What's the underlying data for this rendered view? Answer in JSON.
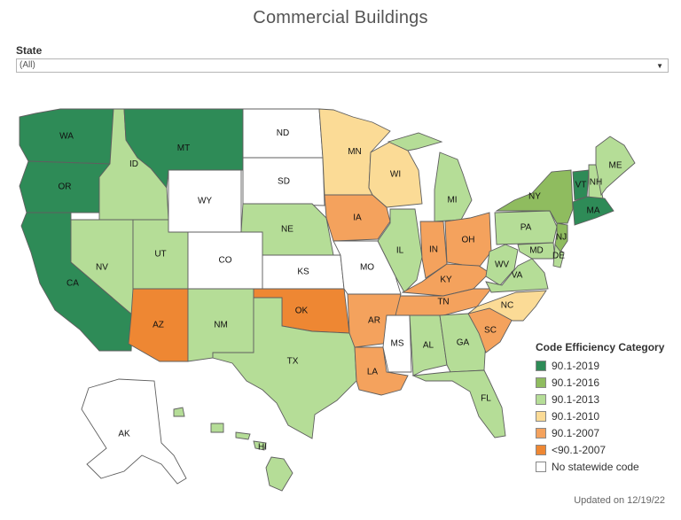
{
  "title": "Commercial Buildings",
  "filter": {
    "label": "State",
    "value": "(All)"
  },
  "legend": {
    "title": "Code Efficiency Category",
    "items": [
      {
        "label": "90.1-2019",
        "color": "#2e8b57"
      },
      {
        "label": "90.1-2016",
        "color": "#8fbc5f"
      },
      {
        "label": "90.1-2013",
        "color": "#b5dd97"
      },
      {
        "label": "90.1-2010",
        "color": "#fbdb96"
      },
      {
        "label": "90.1-2007",
        "color": "#f4a25d"
      },
      {
        "label": "<90.1-2007",
        "color": "#ee8733"
      },
      {
        "label": "No statewide code",
        "color": "#ffffff"
      }
    ]
  },
  "states": [
    {
      "abbr": "WA",
      "category": "90.1-2019"
    },
    {
      "abbr": "OR",
      "category": "90.1-2019"
    },
    {
      "abbr": "CA",
      "category": "90.1-2019"
    },
    {
      "abbr": "MT",
      "category": "90.1-2019"
    },
    {
      "abbr": "VT",
      "category": "90.1-2019"
    },
    {
      "abbr": "MA",
      "category": "90.1-2019"
    },
    {
      "abbr": "NY",
      "category": "90.1-2016"
    },
    {
      "abbr": "NJ",
      "category": "90.1-2016"
    },
    {
      "abbr": "ID",
      "category": "90.1-2013"
    },
    {
      "abbr": "NV",
      "category": "90.1-2013"
    },
    {
      "abbr": "UT",
      "category": "90.1-2013"
    },
    {
      "abbr": "NM",
      "category": "90.1-2013"
    },
    {
      "abbr": "TX",
      "category": "90.1-2013"
    },
    {
      "abbr": "NE",
      "category": "90.1-2013"
    },
    {
      "abbr": "IL",
      "category": "90.1-2013"
    },
    {
      "abbr": "MI",
      "category": "90.1-2013"
    },
    {
      "abbr": "AL",
      "category": "90.1-2013"
    },
    {
      "abbr": "GA",
      "category": "90.1-2013"
    },
    {
      "abbr": "FL",
      "category": "90.1-2013"
    },
    {
      "abbr": "PA",
      "category": "90.1-2013"
    },
    {
      "abbr": "WV",
      "category": "90.1-2013"
    },
    {
      "abbr": "VA",
      "category": "90.1-2013"
    },
    {
      "abbr": "MD",
      "category": "90.1-2013"
    },
    {
      "abbr": "DE",
      "category": "90.1-2013"
    },
    {
      "abbr": "NH",
      "category": "90.1-2013"
    },
    {
      "abbr": "ME",
      "category": "90.1-2013"
    },
    {
      "abbr": "HI",
      "category": "90.1-2013"
    },
    {
      "abbr": "MN",
      "category": "90.1-2010"
    },
    {
      "abbr": "WI",
      "category": "90.1-2010"
    },
    {
      "abbr": "NC",
      "category": "90.1-2010"
    },
    {
      "abbr": "IA",
      "category": "90.1-2007"
    },
    {
      "abbr": "IN",
      "category": "90.1-2007"
    },
    {
      "abbr": "OH",
      "category": "90.1-2007"
    },
    {
      "abbr": "KY",
      "category": "90.1-2007"
    },
    {
      "abbr": "TN",
      "category": "90.1-2007"
    },
    {
      "abbr": "AR",
      "category": "90.1-2007"
    },
    {
      "abbr": "LA",
      "category": "90.1-2007"
    },
    {
      "abbr": "SC",
      "category": "90.1-2007"
    },
    {
      "abbr": "AZ",
      "category": "<90.1-2007"
    },
    {
      "abbr": "OK",
      "category": "<90.1-2007"
    },
    {
      "abbr": "WY",
      "category": "No statewide code"
    },
    {
      "abbr": "ND",
      "category": "No statewide code"
    },
    {
      "abbr": "SD",
      "category": "No statewide code"
    },
    {
      "abbr": "CO",
      "category": "No statewide code"
    },
    {
      "abbr": "KS",
      "category": "No statewide code"
    },
    {
      "abbr": "MO",
      "category": "No statewide code"
    },
    {
      "abbr": "MS",
      "category": "No statewide code"
    },
    {
      "abbr": "AK",
      "category": "No statewide code"
    }
  ],
  "footer": {
    "updated": "Updated on 12/19/22"
  }
}
